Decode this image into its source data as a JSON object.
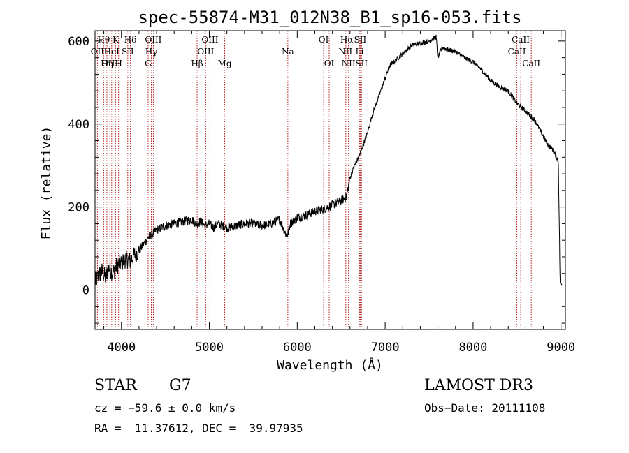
{
  "chart_data": {
    "type": "line",
    "title": "spec-55874-M31_012N38_B1_sp16-053.fits",
    "xlabel": "Wavelength (Å)",
    "ylabel": "Flux (relative)",
    "xlim": [
      3700,
      9050
    ],
    "ylim": [
      -95,
      625
    ],
    "x_ticks": [
      4000,
      5000,
      6000,
      7000,
      8000,
      9000
    ],
    "y_ticks": [
      0,
      200,
      400,
      600
    ],
    "series": [
      {
        "name": "flux",
        "x": [
          3700,
          3740,
          3780,
          3820,
          3860,
          3900,
          3950,
          4000,
          4050,
          4100,
          4150,
          4200,
          4250,
          4300,
          4350,
          4400,
          4500,
          4600,
          4700,
          4800,
          4850,
          4900,
          4950,
          5000,
          5050,
          5100,
          5200,
          5300,
          5400,
          5500,
          5600,
          5700,
          5800,
          5880,
          5900,
          5920,
          6000,
          6100,
          6200,
          6300,
          6400,
          6500,
          6560,
          6600,
          6650,
          6700,
          6750,
          6800,
          6850,
          6900,
          6950,
          7000,
          7050,
          7100,
          7200,
          7300,
          7400,
          7500,
          7580,
          7600,
          7650,
          7700,
          7800,
          7900,
          8000,
          8100,
          8200,
          8300,
          8400,
          8500,
          8550,
          8600,
          8650,
          8700,
          8750,
          8800,
          8850,
          8900,
          8950,
          8970,
          8990,
          9000,
          9010
        ],
        "y": [
          20,
          35,
          45,
          30,
          55,
          40,
          60,
          65,
          75,
          70,
          85,
          95,
          110,
          125,
          135,
          145,
          155,
          160,
          165,
          170,
          160,
          165,
          155,
          160,
          150,
          160,
          150,
          155,
          160,
          160,
          155,
          160,
          170,
          130,
          140,
          160,
          175,
          180,
          190,
          195,
          205,
          215,
          225,
          270,
          300,
          320,
          350,
          380,
          420,
          450,
          480,
          510,
          540,
          550,
          570,
          590,
          595,
          600,
          610,
          560,
          585,
          580,
          575,
          560,
          550,
          530,
          505,
          490,
          480,
          450,
          440,
          430,
          420,
          410,
          390,
          370,
          350,
          340,
          320,
          310,
          20,
          10,
          15
        ]
      }
    ],
    "lines": [
      {
        "label": "Hθ",
        "wave": 3798,
        "row": 1
      },
      {
        "label": "OII",
        "wave": 3727,
        "row": 2
      },
      {
        "label": "OIII",
        "wave": 3869,
        "row": 3
      },
      {
        "label": "K",
        "wave": 3934,
        "row": 1
      },
      {
        "label": "HeI",
        "wave": 3889,
        "row": 2
      },
      {
        "label": "Hη",
        "wave": 3835,
        "row": 3
      },
      {
        "label": "Hδ",
        "wave": 4102,
        "row": 1
      },
      {
        "label": "SII",
        "wave": 4072,
        "row": 2
      },
      {
        "label": "H",
        "wave": 3968,
        "row": 3
      },
      {
        "label": "OIII",
        "wave": 4363,
        "row": 1
      },
      {
        "label": "Hγ",
        "wave": 4340,
        "row": 2
      },
      {
        "label": "G",
        "wave": 4304,
        "row": 3
      },
      {
        "label": "OIII",
        "wave": 5007,
        "row": 1
      },
      {
        "label": "OIII",
        "wave": 4959,
        "row": 2
      },
      {
        "label": "Hβ",
        "wave": 4861,
        "row": 3
      },
      {
        "label": "Mg",
        "wave": 5175,
        "row": 3
      },
      {
        "label": "Na",
        "wave": 5893,
        "row": 2
      },
      {
        "label": "OI",
        "wave": 6300,
        "row": 1
      },
      {
        "label": "OI",
        "wave": 6363,
        "row": 3
      },
      {
        "label": "Hα",
        "wave": 6563,
        "row": 1
      },
      {
        "label": "SII",
        "wave": 6716,
        "row": 1
      },
      {
        "label": "NII",
        "wave": 6548,
        "row": 2
      },
      {
        "label": "Li",
        "wave": 6708,
        "row": 2
      },
      {
        "label": "NII",
        "wave": 6583,
        "row": 3
      },
      {
        "label": "SII",
        "wave": 6731,
        "row": 3
      },
      {
        "label": "CaII",
        "wave": 8542,
        "row": 1
      },
      {
        "label": "CaII",
        "wave": 8498,
        "row": 2
      },
      {
        "label": "CaII",
        "wave": 8662,
        "row": 3
      }
    ]
  },
  "info": {
    "class_label": "STAR",
    "subclass": "G7",
    "survey": "LAMOST DR3",
    "cz": "cz = −59.6 ± 0.0 km/s",
    "obs_date": "Obs−Date: 20111108",
    "coords": "RA =  11.37612, DEC =  39.97935"
  },
  "colors": {
    "spectrum": "#000000",
    "line_markers": "#b22222",
    "axes": "#000000"
  }
}
